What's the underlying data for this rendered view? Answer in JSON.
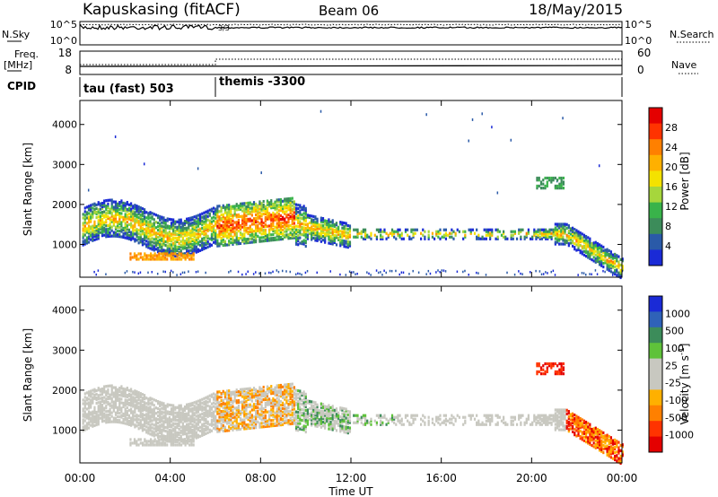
{
  "header": {
    "title": "Kapuskasing (fitACF)",
    "beam": "Beam 06",
    "date": "18/May/2015"
  },
  "sky_panel": {
    "left_label": "N.Sky",
    "left_ticks": [
      "10^5",
      "10^0"
    ],
    "right_label": "N.Search",
    "right_ticks": [
      "10^5",
      "10^0"
    ],
    "annotation": "3/3"
  },
  "freq_panel": {
    "left_label_1": "Freq.",
    "left_label_2": "[MHz]",
    "left_ticks": [
      "18",
      "8"
    ],
    "right_label": "Nave",
    "right_ticks": [
      "60",
      "0"
    ]
  },
  "cpid": {
    "label": "CPID",
    "segments": [
      {
        "label": "tau (fast) 503",
        "start_hour": 0,
        "end_hour": 6
      },
      {
        "label": "themis -3300",
        "start_hour": 6,
        "end_hour": 24
      }
    ]
  },
  "chart_data": [
    {
      "type": "heatmap",
      "name": "power",
      "ylabel": "Slant Range [km]",
      "ylim": [
        180,
        4600
      ],
      "yticks": [
        1000,
        2000,
        3000,
        4000
      ],
      "colorbar_label": "Power [dB]",
      "colorbar_ticks": [
        "28",
        "24",
        "20",
        "16",
        "12",
        "8",
        "4"
      ],
      "colorbar_colors": [
        "#e40000",
        "#ff3300",
        "#ff8000",
        "#ffb000",
        "#f4e200",
        "#a6d63c",
        "#39b34a",
        "#3c8c5a",
        "#2a5aa8",
        "#1a2ad6"
      ]
    },
    {
      "type": "heatmap",
      "name": "velocity",
      "xlabel": "Time UT",
      "ylabel": "Slant Range [km]",
      "xlim": [
        0,
        24
      ],
      "ylim": [
        180,
        4600
      ],
      "xticks": [
        "00:00",
        "04:00",
        "08:00",
        "12:00",
        "16:00",
        "20:00",
        "00:00"
      ],
      "yticks": [
        1000,
        2000,
        3000,
        4000
      ],
      "colorbar_label": "Velocity [m s",
      "colorbar_superscript": "-1",
      "colorbar_label_end": "]",
      "colorbar_ticks": [
        "1000",
        "500",
        "100",
        "25",
        "-25",
        "-100",
        "-500",
        "-1000"
      ],
      "colorbar_colors": [
        "#1a2ad6",
        "#2f62b8",
        "#3c8c5a",
        "#5fc23a",
        "#c8c8c0",
        "#c8c8c0",
        "#ffb000",
        "#ff8000",
        "#ff3300",
        "#e40000"
      ]
    }
  ]
}
